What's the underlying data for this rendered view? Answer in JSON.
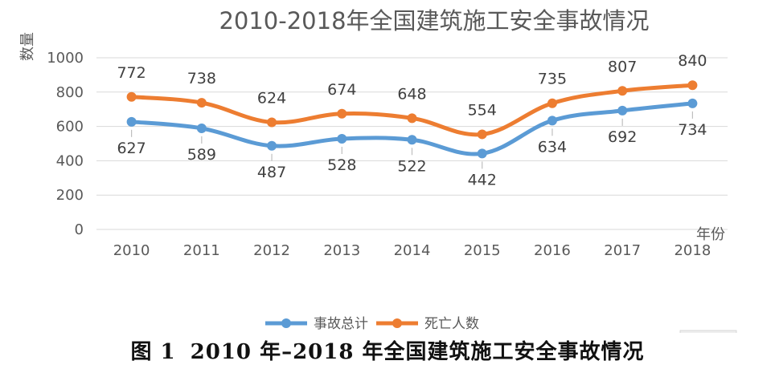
{
  "chart_data": {
    "type": "line",
    "title": "2010-2018年全国建筑施工安全事故情况",
    "ylabel": "数量",
    "xlabel": "年份",
    "categories": [
      "2010",
      "2011",
      "2012",
      "2013",
      "2014",
      "2015",
      "2016",
      "2017",
      "2018"
    ],
    "ylim": [
      0,
      1000
    ],
    "yticks": [
      "0",
      "200",
      "400",
      "600",
      "800",
      "1000"
    ],
    "grid": true,
    "legend_position": "bottom",
    "series": [
      {
        "name": "事故总计",
        "color": "#5b9bd5",
        "values": [
          627,
          589,
          487,
          528,
          522,
          442,
          634,
          692,
          734
        ]
      },
      {
        "name": "死亡人数",
        "color": "#ed7d31",
        "values": [
          772,
          738,
          624,
          674,
          648,
          554,
          735,
          807,
          840
        ]
      }
    ]
  },
  "caption": {
    "figure_number": "图 1",
    "text": "2010 年–2018 年全国建筑施工安全事故情况"
  }
}
